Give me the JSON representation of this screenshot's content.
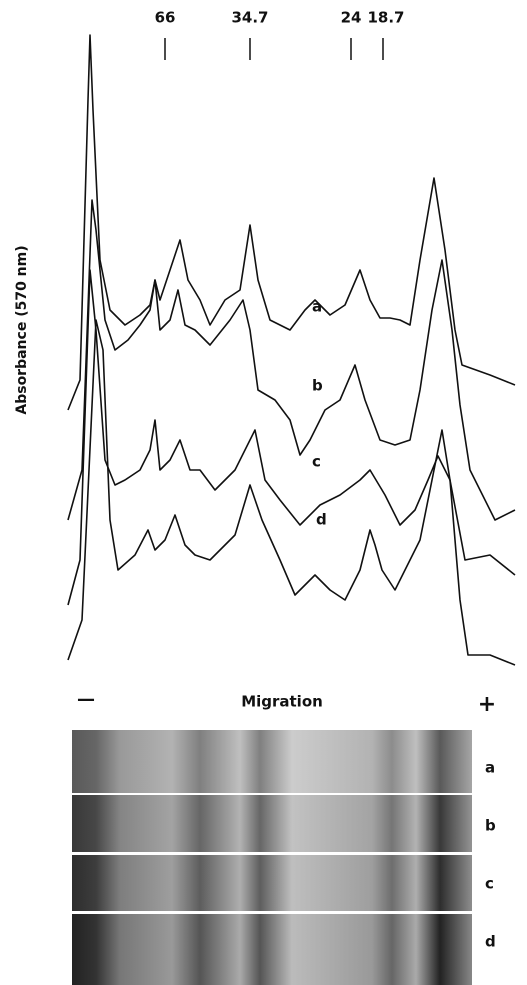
{
  "markers": [
    "66",
    "34.7",
    "24",
    "18.7"
  ],
  "y_axis_label": "Absorbance (570 nm)",
  "trace_labels": [
    "a",
    "b",
    "c",
    "d"
  ],
  "x_axis": {
    "minus": "—",
    "label": "Migration",
    "plus": "+"
  },
  "gel_labels": [
    "a",
    "b",
    "c",
    "d"
  ]
}
